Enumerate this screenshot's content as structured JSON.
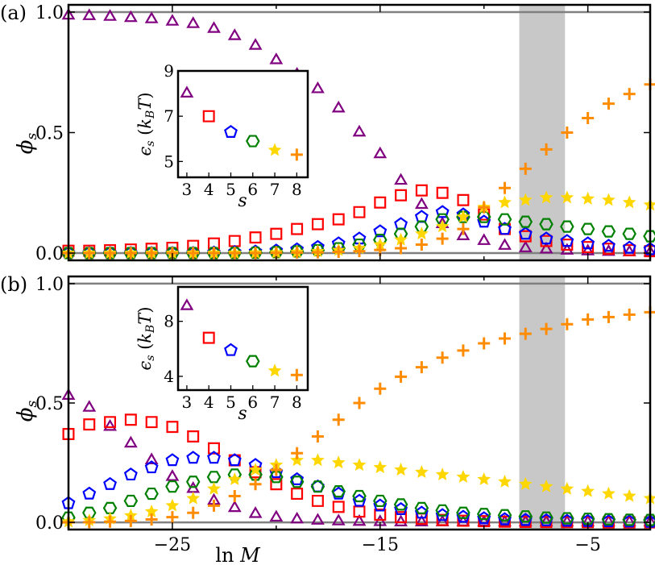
{
  "chart_data": {
    "type": "scatter",
    "xlabel": "ln M",
    "ylabel": "φ_s",
    "xlim": [
      -30,
      -2
    ],
    "xticks": [
      -25,
      -15,
      -5
    ],
    "xtick_labels": [
      "−25",
      "−15",
      "−5"
    ],
    "shaded_band": [
      -8.3,
      -6.1
    ],
    "series_styles": [
      {
        "name": "s = 3",
        "marker": "triangle",
        "color": "#800080"
      },
      {
        "name": "s = 4",
        "marker": "square",
        "color": "#ff0000"
      },
      {
        "name": "s = 5",
        "marker": "pentagon",
        "color": "#0000ff"
      },
      {
        "name": "s = 6",
        "marker": "hexagon",
        "color": "#008000"
      },
      {
        "name": "s = 7",
        "marker": "star",
        "color": "#ffd700"
      },
      {
        "name": "s = 8",
        "marker": "plus",
        "color": "#ff8c00"
      }
    ],
    "x": [
      -30,
      -29,
      -28,
      -27,
      -26,
      -25,
      -24,
      -23,
      -22,
      -21,
      -20,
      -19,
      -18,
      -17,
      -16,
      -15,
      -14,
      -13,
      -12,
      -11,
      -10,
      -9,
      -8,
      -7,
      -6,
      -5,
      -4,
      -3,
      -2
    ],
    "panels": [
      {
        "label": "(a)",
        "ylim": [
          -0.03,
          1.03
        ],
        "yticks": [
          0.0,
          0.5,
          1.0
        ],
        "ytick_labels": [
          "0.0",
          "0.5",
          "1.0"
        ],
        "hlines": [
          0.0,
          1.0
        ],
        "series": [
          {
            "name": "s = 3",
            "values": [
              0.985,
              0.983,
              0.98,
              0.975,
              0.97,
              0.96,
              0.95,
              0.93,
              0.9,
              0.86,
              0.8,
              0.74,
              0.68,
              0.6,
              0.5,
              0.41,
              0.3,
              0.2,
              0.12,
              0.07,
              0.05,
              0.03,
              0.02,
              0.015,
              0.01,
              0.007,
              0.005,
              0.003,
              0.002
            ]
          },
          {
            "name": "s = 4",
            "values": [
              0.01,
              0.01,
              0.012,
              0.015,
              0.018,
              0.022,
              0.03,
              0.04,
              0.05,
              0.065,
              0.08,
              0.1,
              0.12,
              0.14,
              0.17,
              0.21,
              0.24,
              0.26,
              0.25,
              0.22,
              0.16,
              0.1,
              0.07,
              0.05,
              0.035,
              0.025,
              0.018,
              0.012,
              0.008
            ]
          },
          {
            "name": "s = 5",
            "values": [
              0.0,
              0.0,
              0.0,
              0.0,
              0.0,
              0.0,
              0.0,
              0.002,
              0.004,
              0.006,
              0.01,
              0.015,
              0.025,
              0.04,
              0.06,
              0.09,
              0.12,
              0.15,
              0.17,
              0.16,
              0.13,
              0.1,
              0.08,
              0.06,
              0.05,
              0.04,
              0.03,
              0.022,
              0.016
            ]
          },
          {
            "name": "s = 6",
            "values": [
              0.0,
              0.0,
              0.0,
              0.0,
              0.0,
              0.0,
              0.0,
              0.0,
              0.001,
              0.002,
              0.004,
              0.007,
              0.012,
              0.02,
              0.035,
              0.055,
              0.08,
              0.11,
              0.14,
              0.15,
              0.15,
              0.14,
              0.13,
              0.12,
              0.11,
              0.1,
              0.09,
              0.08,
              0.07
            ]
          },
          {
            "name": "s = 7",
            "values": [
              0.0,
              0.0,
              0.0,
              0.0,
              0.0,
              0.0,
              0.0,
              0.0,
              0.0,
              0.001,
              0.002,
              0.004,
              0.007,
              0.012,
              0.02,
              0.035,
              0.055,
              0.08,
              0.11,
              0.15,
              0.19,
              0.21,
              0.22,
              0.23,
              0.23,
              0.225,
              0.22,
              0.21,
              0.2
            ]
          },
          {
            "name": "s = 8",
            "values": [
              0.0,
              0.0,
              0.0,
              0.0,
              0.0,
              0.0,
              0.0,
              0.0,
              0.0,
              0.0,
              0.001,
              0.002,
              0.003,
              0.005,
              0.008,
              0.013,
              0.02,
              0.035,
              0.06,
              0.1,
              0.19,
              0.27,
              0.35,
              0.43,
              0.5,
              0.56,
              0.62,
              0.66,
              0.7
            ]
          }
        ],
        "inset": {
          "xlabel": "s",
          "ylabel": "ε_s (k_B T)",
          "xlim": [
            2.6,
            8.5
          ],
          "ylim": [
            4.3,
            9.0
          ],
          "xticks": [
            3,
            4,
            5,
            6,
            7,
            8
          ],
          "xtick_labels": [
            "3",
            "4",
            "5",
            "6",
            "7",
            "8"
          ],
          "yticks": [
            5,
            7,
            9
          ],
          "ytick_labels": [
            "5",
            "7",
            "9"
          ],
          "values": [
            8.0,
            7.0,
            6.3,
            5.9,
            5.5,
            5.3
          ]
        }
      },
      {
        "label": "(b)",
        "ylim": [
          -0.03,
          1.03
        ],
        "yticks": [
          0.0,
          0.5,
          1.0
        ],
        "ytick_labels": [
          "0.0",
          "0.5",
          "1.0"
        ],
        "hlines": [
          0.0,
          1.0
        ],
        "series": [
          {
            "name": "s = 3",
            "values": [
              0.53,
              0.48,
              0.4,
              0.33,
              0.26,
              0.19,
              0.14,
              0.09,
              0.06,
              0.035,
              0.02,
              0.012,
              0.007,
              0.004,
              0.002,
              0.001,
              0.0,
              0.0,
              0.0,
              0.0,
              0.0,
              0.0,
              0.0,
              0.0,
              0.0,
              0.0,
              0.0,
              0.0,
              0.0
            ]
          },
          {
            "name": "s = 4",
            "values": [
              0.37,
              0.41,
              0.42,
              0.43,
              0.42,
              0.4,
              0.36,
              0.31,
              0.26,
              0.21,
              0.16,
              0.12,
              0.09,
              0.065,
              0.045,
              0.032,
              0.022,
              0.015,
              0.01,
              0.007,
              0.005,
              0.003,
              0.002,
              0.0015,
              0.001,
              0.001,
              0.0,
              0.0,
              0.0
            ]
          },
          {
            "name": "s = 5",
            "values": [
              0.08,
              0.12,
              0.16,
              0.2,
              0.23,
              0.26,
              0.27,
              0.27,
              0.26,
              0.24,
              0.21,
              0.18,
              0.15,
              0.12,
              0.09,
              0.07,
              0.055,
              0.04,
              0.03,
              0.023,
              0.017,
              0.013,
              0.01,
              0.008,
              0.006,
              0.005,
              0.004,
              0.003,
              0.002
            ]
          },
          {
            "name": "s = 6",
            "values": [
              0.02,
              0.04,
              0.06,
              0.09,
              0.12,
              0.15,
              0.17,
              0.19,
              0.2,
              0.2,
              0.19,
              0.17,
              0.15,
              0.13,
              0.11,
              0.09,
              0.075,
              0.06,
              0.05,
              0.04,
              0.035,
              0.03,
              0.025,
              0.02,
              0.017,
              0.015,
              0.013,
              0.011,
              0.01
            ]
          },
          {
            "name": "s = 7",
            "values": [
              0.003,
              0.008,
              0.015,
              0.028,
              0.045,
              0.07,
              0.1,
              0.14,
              0.18,
              0.22,
              0.24,
              0.26,
              0.26,
              0.25,
              0.24,
              0.23,
              0.22,
              0.21,
              0.2,
              0.19,
              0.18,
              0.17,
              0.16,
              0.15,
              0.14,
              0.13,
              0.12,
              0.11,
              0.1
            ]
          },
          {
            "name": "s = 8",
            "values": [
              0.0,
              0.001,
              0.003,
              0.006,
              0.012,
              0.022,
              0.04,
              0.07,
              0.11,
              0.16,
              0.22,
              0.29,
              0.36,
              0.43,
              0.5,
              0.56,
              0.61,
              0.65,
              0.69,
              0.72,
              0.75,
              0.77,
              0.79,
              0.81,
              0.83,
              0.85,
              0.86,
              0.87,
              0.88
            ]
          }
        ],
        "inset": {
          "xlabel": "s",
          "ylabel": "ε_s (k_B T)",
          "xlim": [
            2.6,
            8.5
          ],
          "ylim": [
            3.0,
            10.5
          ],
          "xticks": [
            3,
            4,
            5,
            6,
            7,
            8
          ],
          "xtick_labels": [
            "3",
            "4",
            "5",
            "6",
            "7",
            "8"
          ],
          "yticks": [
            4,
            8
          ],
          "ytick_labels": [
            "4",
            "8"
          ],
          "values": [
            9.1,
            6.8,
            5.9,
            5.1,
            4.4,
            4.1
          ]
        }
      }
    ]
  }
}
